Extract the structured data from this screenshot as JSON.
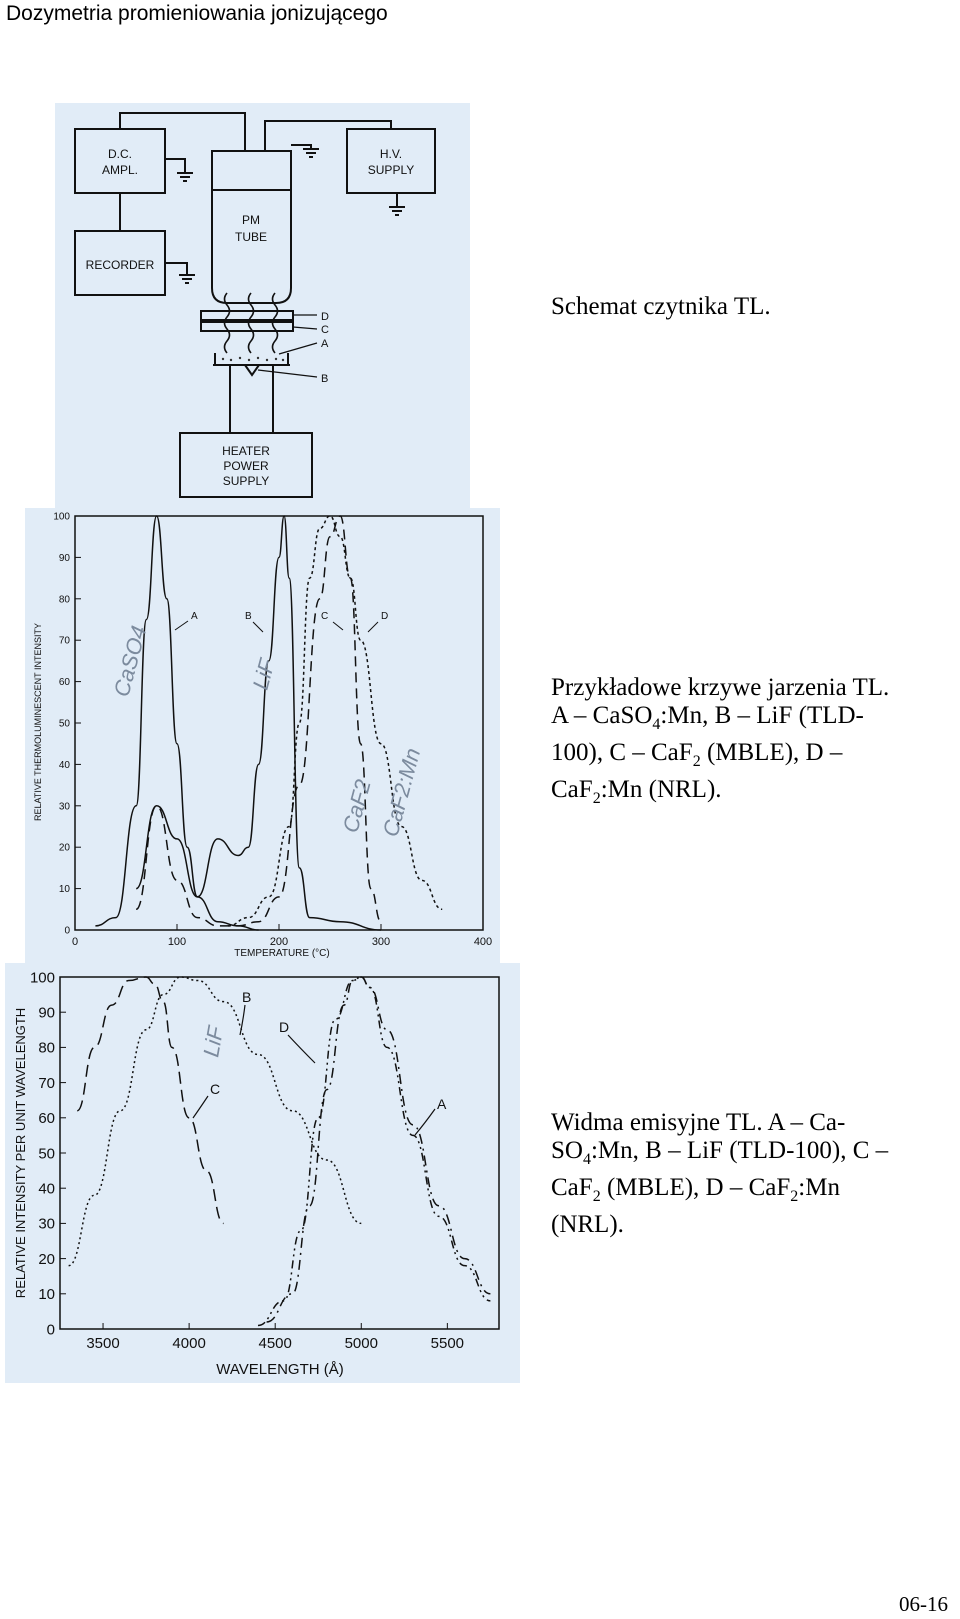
{
  "header": {
    "title": "Dozymetria promieniowania jonizującego"
  },
  "page_number": "06-16",
  "fig1": {
    "caption": "Schemat czytnika TL.",
    "blocks": {
      "dc_ampl_1": "D.C.",
      "dc_ampl_2": "AMPL.",
      "hv_supply_1": "H.V.",
      "hv_supply_2": "SUPPLY",
      "pm_tube_1": "PM",
      "pm_tube_2": "TUBE",
      "recorder": "RECORDER",
      "heater_1": "HEATER",
      "heater_2": "POWER",
      "heater_3": "SUPPLY",
      "label_d": "D",
      "label_c": "C",
      "label_a": "A",
      "label_b": "B"
    }
  },
  "fig2": {
    "caption": {
      "line1": "Przykładowe krzywe jarzenia TL.",
      "l2a": "A – CaSO",
      "l2sub": "4",
      "l2b": ":Mn, B – LiF (TLD-",
      "l3a": "100), C – CaF",
      "l3sub": "2",
      "l3b": " (MBLE), D –",
      "l4a": "CaF",
      "l4sub": "2",
      "l4b": ":Mn (NRL)."
    },
    "chart_data": {
      "type": "line",
      "xlabel": "TEMPERATURE (°C)",
      "ylabel": "RELATIVE THERMOLUMINESCENT INTENSITY",
      "xlim": [
        0,
        400
      ],
      "ylim": [
        0,
        100
      ],
      "xticks": [
        "0",
        "100",
        "200",
        "300",
        "400"
      ],
      "yticks": [
        "0",
        "10",
        "20",
        "30",
        "40",
        "50",
        "60",
        "70",
        "80",
        "90",
        "100"
      ],
      "annotations": [
        "A",
        "B",
        "C",
        "D"
      ],
      "handwritten": [
        "CaSO4",
        "LiF",
        "CaF2",
        "CaF2:Mn"
      ],
      "series": [
        {
          "name": "A",
          "x": [
            20,
            40,
            60,
            70,
            80,
            90,
            100,
            110,
            120,
            140,
            160,
            180
          ],
          "y": [
            1,
            3,
            30,
            75,
            100,
            80,
            45,
            20,
            8,
            2,
            1,
            0
          ]
        },
        {
          "name": "B",
          "x": [
            60,
            80,
            100,
            120,
            140,
            160,
            170,
            180,
            190,
            200,
            205,
            210,
            220,
            230,
            260,
            300
          ],
          "y": [
            10,
            30,
            22,
            8,
            22,
            18,
            20,
            40,
            65,
            90,
            100,
            85,
            15,
            3,
            2,
            0
          ]
        },
        {
          "name": "C",
          "x": [
            60,
            80,
            100,
            120,
            140,
            160,
            180,
            200,
            220,
            240,
            250,
            260,
            270,
            280,
            290,
            300
          ],
          "y": [
            5,
            30,
            12,
            3,
            1,
            1,
            2,
            8,
            35,
            80,
            95,
            100,
            85,
            45,
            10,
            2
          ]
        },
        {
          "name": "D",
          "x": [
            150,
            170,
            190,
            210,
            220,
            230,
            240,
            250,
            260,
            270,
            280,
            300,
            320,
            340,
            360
          ],
          "y": [
            1,
            3,
            8,
            25,
            50,
            85,
            97,
            100,
            95,
            85,
            70,
            45,
            25,
            12,
            5
          ]
        }
      ]
    }
  },
  "fig3": {
    "caption": {
      "line1": "Widma emisyjne TL. A – Ca-",
      "l2a": "SO",
      "l2sub": "4",
      "l2b": ":Mn, B – LiF (TLD-100), C –",
      "l3a": "CaF",
      "l3sub": "2",
      "l3b": " (MBLE), D – CaF",
      "l3sub2": "2",
      "l3c": ":Mn",
      "line4": "(NRL)."
    },
    "chart_data": {
      "type": "line",
      "xlabel": "WAVELENGTH (Å)",
      "ylabel": "RELATIVE INTENSITY PER UNIT WAVELENGTH",
      "xlim": [
        3250,
        5800
      ],
      "ylim": [
        0,
        100
      ],
      "xticks": [
        "3500",
        "4000",
        "4500",
        "5000",
        "5500"
      ],
      "yticks": [
        "0",
        "10",
        "20",
        "30",
        "40",
        "50",
        "60",
        "70",
        "80",
        "90",
        "100"
      ],
      "annotations": [
        "A",
        "B",
        "C",
        "D"
      ],
      "handwritten": [
        "LiF"
      ],
      "series": [
        {
          "name": "A",
          "x": [
            4450,
            4600,
            4700,
            4800,
            4900,
            4950,
            5000,
            5050,
            5150,
            5300,
            5450,
            5600,
            5750
          ],
          "y": [
            2,
            10,
            35,
            68,
            92,
            99,
            100,
            97,
            85,
            58,
            35,
            20,
            10
          ]
        },
        {
          "name": "B",
          "x": [
            3300,
            3450,
            3600,
            3750,
            3850,
            3950,
            4050,
            4200,
            4400,
            4600,
            4800,
            5000
          ],
          "y": [
            18,
            38,
            62,
            85,
            95,
            100,
            99,
            93,
            78,
            62,
            48,
            30
          ]
        },
        {
          "name": "C",
          "x": [
            3350,
            3450,
            3550,
            3650,
            3750,
            3800,
            3850,
            3900,
            4000,
            4100,
            4200
          ],
          "y": [
            62,
            80,
            92,
            99,
            100,
            98,
            93,
            80,
            60,
            45,
            30
          ]
        },
        {
          "name": "D",
          "x": [
            4400,
            4550,
            4650,
            4750,
            4850,
            4950,
            5000,
            5050,
            5150,
            5300,
            5450,
            5600,
            5750
          ],
          "y": [
            1,
            8,
            28,
            60,
            88,
            99,
            100,
            97,
            80,
            55,
            32,
            18,
            8
          ]
        }
      ]
    }
  }
}
